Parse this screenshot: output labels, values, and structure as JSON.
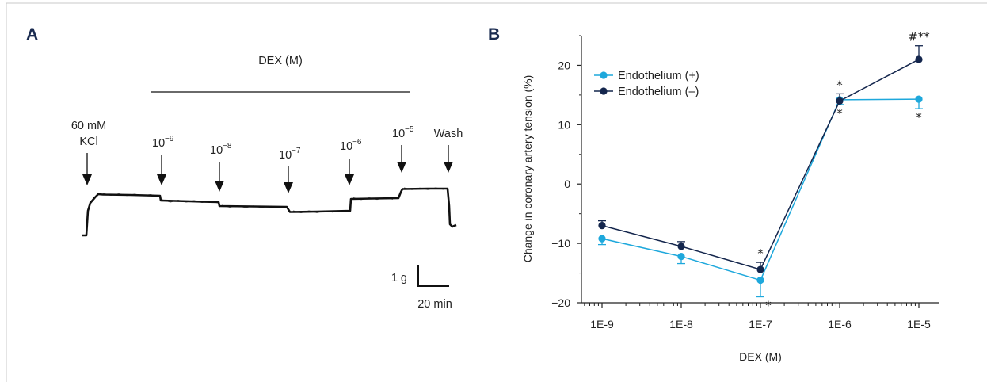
{
  "panel_a": {
    "letter": "A",
    "drug_label": "DEX (M)",
    "kcl_line1": "60 mM",
    "kcl_line2": "KCl",
    "doses": [
      {
        "base": "10",
        "exp": "−9"
      },
      {
        "base": "10",
        "exp": "−8"
      },
      {
        "base": "10",
        "exp": "−7"
      },
      {
        "base": "10",
        "exp": "−6"
      },
      {
        "base": "10",
        "exp": "−5"
      }
    ],
    "wash_label": "Wash",
    "scale_tension": "1 g",
    "scale_time": "20 min"
  },
  "panel_b": {
    "letter": "B"
  },
  "colors": {
    "endothelium_plus": "#1ea8dc",
    "endothelium_minus": "#14264d",
    "panel_letter": "#1a2b50",
    "trace": "#111111"
  },
  "chart_data": {
    "type": "line",
    "title": "",
    "xlabel": "DEX (M)",
    "ylabel": "Change in coronary artery tension (%)",
    "categories": [
      "1E-9",
      "1E-8",
      "1E-7",
      "1E-6",
      "1E-5"
    ],
    "ylim": [
      -20,
      25
    ],
    "yticks": [
      -20,
      -10,
      0,
      10,
      20
    ],
    "grid": false,
    "legend_position": "top-left",
    "series": [
      {
        "name": "Endothelium (+)",
        "color": "#1ea8dc",
        "values": [
          -9.2,
          -12.2,
          -16.2,
          14.2,
          14.3
        ],
        "errors": [
          1.0,
          1.2,
          2.8,
          0.8,
          1.6
        ],
        "error_direction": "down"
      },
      {
        "name": "Endothelium (–)",
        "color": "#14264d",
        "values": [
          -7.0,
          -10.5,
          -14.4,
          14.0,
          21.0
        ],
        "errors": [
          0.8,
          0.8,
          1.2,
          1.2,
          2.3
        ],
        "error_direction": "up"
      }
    ],
    "annotations": [
      {
        "category": "1E-7",
        "series": "Endothelium (–)",
        "text": "*",
        "placement": "above"
      },
      {
        "category": "1E-7",
        "series": "Endothelium (+)",
        "text": "*",
        "placement": "below"
      },
      {
        "category": "1E-6",
        "series": "Endothelium (–)",
        "text": "*",
        "placement": "above"
      },
      {
        "category": "1E-6",
        "series": "Endothelium (+)",
        "text": "*",
        "placement": "below"
      },
      {
        "category": "1E-5",
        "series": "Endothelium (–)",
        "text": "#**",
        "placement": "above"
      },
      {
        "category": "1E-5",
        "series": "Endothelium (+)",
        "text": "*",
        "placement": "below"
      }
    ]
  }
}
